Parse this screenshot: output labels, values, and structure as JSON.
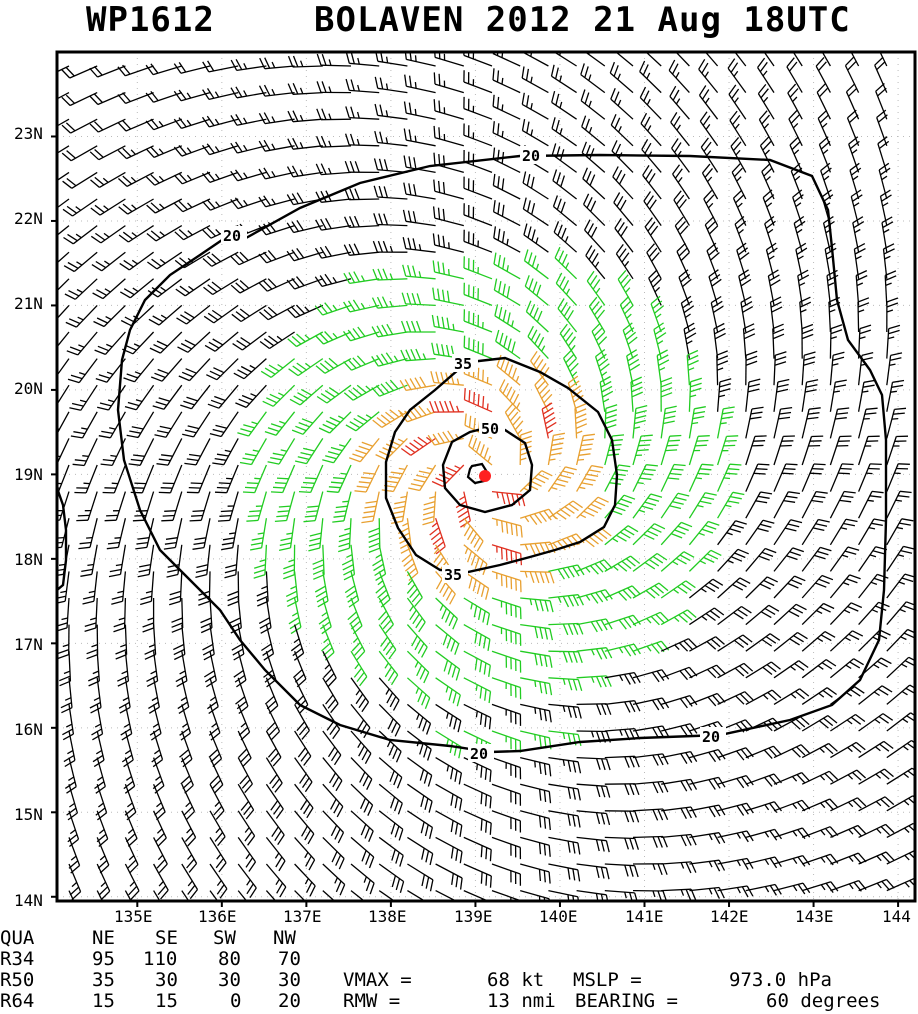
{
  "title": {
    "storm_id": "WP1612",
    "storm_label": "BOLAVEN 2012 21 Aug 18UTC"
  },
  "axes": {
    "lat_labels": [
      "23N",
      "22N",
      "21N",
      "20N",
      "19N",
      "18N",
      "17N",
      "16N",
      "15N",
      "14N"
    ],
    "lon_labels": [
      "135E",
      "136E",
      "137E",
      "138E",
      "139E",
      "140E",
      "141E",
      "142E",
      "143E",
      "144"
    ]
  },
  "map": {
    "lat_range": [
      13.95,
      24.0
    ],
    "lon_range": [
      134.05,
      144.2
    ],
    "center": {
      "lat": 18.98,
      "lon": 139.15
    },
    "contour_labels": [
      "20",
      "20",
      "20",
      "35",
      "35",
      "50"
    ],
    "colors": {
      "contour": "#000000",
      "barb_weak": "#000000",
      "barb_34kt": "#22cc22",
      "barb_50kt": "#e8a030",
      "barb_64kt": "#e03020",
      "center_marker": "#ff2020"
    }
  },
  "radii_table": {
    "header": [
      "QUA",
      "NE",
      "SE",
      "SW",
      "NW"
    ],
    "rows": [
      [
        "R34",
        "95",
        "110",
        "80",
        "70"
      ],
      [
        "R50",
        "35",
        "30",
        "30",
        "30"
      ],
      [
        "R64",
        "15",
        "15",
        "0",
        "20"
      ]
    ]
  },
  "stats": {
    "vmax_label": "VMAX =",
    "vmax_value": "68 kt",
    "mslp_label": "MSLP =",
    "mslp_value": "973.0 hPa",
    "rmw_label": "RMW  =",
    "rmw_value": "13 nmi",
    "bearing_label": "BEARING =",
    "bearing_value": "60 degrees"
  }
}
